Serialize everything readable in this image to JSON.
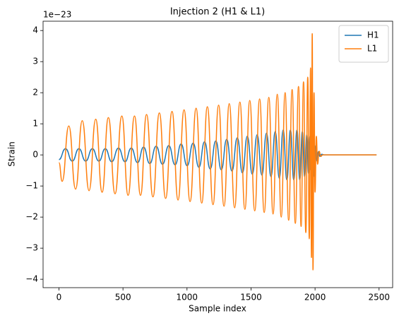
{
  "chart_data": {
    "type": "line",
    "title": "Injection 2 (H1 & L1)",
    "x_label": "Sample index",
    "y_label": "Strain",
    "y_offset_label": "1e−23",
    "xlim": [
      -124,
      2606
    ],
    "ylim": [
      -4.27,
      4.3
    ],
    "xticks": [
      0,
      500,
      1000,
      1500,
      2000,
      2500
    ],
    "yticks": [
      {
        "value": -4,
        "label": "−4"
      },
      {
        "value": -3,
        "label": "−3"
      },
      {
        "value": -2,
        "label": "−2"
      },
      {
        "value": -1,
        "label": "−1"
      },
      0,
      1,
      2,
      3,
      4
    ],
    "legend": "upper right",
    "grid": false,
    "series": [
      {
        "name": "H1",
        "color": "#1f77b4",
        "x": [
          0,
          51,
          104,
          156,
          209,
          261,
          312,
          362,
          412,
          465,
          516,
          565,
          614,
          661,
          709,
          759,
          809,
          858,
          907,
          954,
          1001,
          1048,
          1093,
          1137,
          1181,
          1225,
          1268,
          1310,
          1351,
          1393,
          1433,
          1471,
          1510,
          1548,
          1585,
          1621,
          1656,
          1689,
          1721,
          1751,
          1780,
          1808,
          1834,
          1859,
          1881,
          1901,
          1919,
          1936,
          1949,
          1960,
          1969,
          1975,
          1981,
          1988,
          1996,
          2005,
          2015,
          2026,
          2038,
          2052,
          2070,
          2480
        ],
        "values": [
          -0.15,
          0.2,
          -0.2,
          0.2,
          -0.2,
          0.2,
          -0.2,
          0.2,
          -0.22,
          0.22,
          -0.22,
          0.22,
          -0.25,
          0.25,
          -0.28,
          0.28,
          -0.3,
          0.3,
          -0.32,
          0.35,
          -0.35,
          0.38,
          -0.4,
          0.42,
          -0.45,
          0.45,
          -0.48,
          0.5,
          -0.52,
          0.55,
          -0.58,
          0.6,
          -0.62,
          0.65,
          -0.65,
          0.7,
          -0.7,
          0.75,
          -0.75,
          0.8,
          -0.8,
          0.8,
          -0.8,
          0.8,
          -0.8,
          0.75,
          -0.7,
          0.65,
          -0.6,
          0.6,
          -0.5,
          0.5,
          -0.6,
          0.4,
          -0.7,
          0.3,
          -0.2,
          0.1,
          -0.05,
          0.02,
          0,
          0
        ]
      },
      {
        "name": "L1",
        "color": "#ff7f0e",
        "x": [
          0,
          25,
          77,
          130,
          182,
          235,
          287,
          337,
          386,
          438,
          491,
          540,
          590,
          637,
          684,
          734,
          784,
          833,
          883,
          930,
          977,
          1024,
          1071,
          1115,
          1159,
          1203,
          1247,
          1289,
          1330,
          1372,
          1413,
          1452,
          1490,
          1529,
          1567,
          1603,
          1639,
          1672,
          1705,
          1736,
          1766,
          1794,
          1821,
          1846,
          1871,
          1891,
          1910,
          1928,
          1943,
          1955,
          1965,
          1972,
          1978,
          1984,
          1992,
          2000,
          2010,
          2020,
          2032,
          2045,
          2060,
          2480
        ],
        "values": [
          -0.25,
          -0.85,
          0.93,
          -1.1,
          1.1,
          -1.15,
          1.15,
          -1.2,
          1.2,
          -1.25,
          1.25,
          -1.3,
          1.25,
          -1.3,
          1.3,
          -1.35,
          1.35,
          -1.4,
          1.4,
          -1.45,
          1.45,
          -1.5,
          1.5,
          -1.55,
          1.55,
          -1.6,
          1.6,
          -1.65,
          1.65,
          -1.7,
          1.7,
          -1.75,
          1.75,
          -1.8,
          1.8,
          -1.85,
          1.85,
          -1.9,
          1.95,
          -2.0,
          2.0,
          -2.1,
          2.1,
          -2.2,
          2.2,
          -2.3,
          2.35,
          -2.5,
          2.5,
          -2.7,
          2.8,
          -3.3,
          3.9,
          -3.7,
          2.0,
          -1.2,
          0.6,
          -0.3,
          0.12,
          -0.05,
          0,
          0
        ]
      }
    ]
  }
}
